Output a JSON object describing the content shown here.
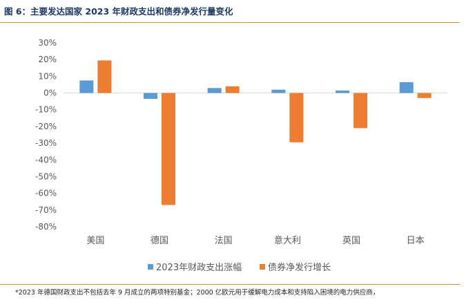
{
  "figure_title": "图 6：主要发达国家 2023 年财政支出和债券净发行量变化",
  "footnote": "*2023 年德国财政支出不包括去年 9 月成立的两项特别基金；2000 亿欧元用于缓解电力成本和支持陷入困境的电力供应商，",
  "colors": {
    "series1": "#5b9bd5",
    "series2": "#ed7d31",
    "rule": "#c9912e",
    "title": "#1f3864"
  },
  "chart_data": {
    "type": "bar",
    "title": "",
    "xlabel": "",
    "ylabel": "",
    "categories": [
      "美国",
      "德国",
      "法国",
      "意大利",
      "英国",
      "日本"
    ],
    "series": [
      {
        "name": "2023年财政支出涨幅",
        "values": [
          7.5,
          -3.5,
          3,
          2,
          1.5,
          6.5
        ]
      },
      {
        "name": "债券净发行增长",
        "values": [
          19.5,
          -67,
          4,
          -29.5,
          -21,
          -3
        ]
      }
    ],
    "ylim": [
      -80,
      30
    ],
    "yticks": [
      "30%",
      "20%",
      "10%",
      "0%",
      "-10%",
      "-20%",
      "-30%",
      "-40%",
      "-50%",
      "-60%",
      "-70%",
      "-80%"
    ],
    "legend_position": "bottom",
    "grid": false
  }
}
